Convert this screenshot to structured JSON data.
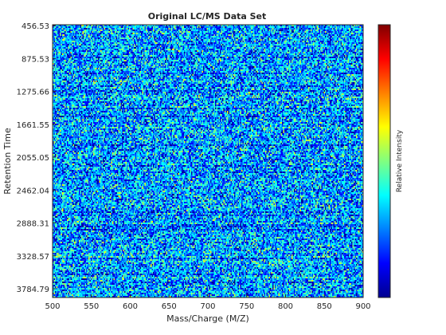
{
  "chart_data": {
    "type": "heatmap",
    "title": "Original LC/MS Data Set",
    "xlabel": "Mass/Charge (M/Z)",
    "ylabel": "Retention Time",
    "colorbar_label": "Relative Intensity",
    "colormap": "jet",
    "xlim": [
      500,
      900
    ],
    "x_ticks": [
      "500",
      "550",
      "600",
      "650",
      "700",
      "750",
      "800",
      "850",
      "900"
    ],
    "y_ticks": [
      "456.53",
      "875.53",
      "1275.66",
      "1661.55",
      "2055.05",
      "2462.04",
      "2888.31",
      "3328.57",
      "3784.79"
    ],
    "y_direction": "top-to-bottom",
    "intensity_range": [
      0,
      1
    ],
    "colors": {
      "jet": [
        "#00008f",
        "#0000ff",
        "#0080ff",
        "#00ffff",
        "#80ff80",
        "#ffff00",
        "#ff8000",
        "#ff0000",
        "#800000"
      ],
      "axis": "#262626"
    }
  }
}
